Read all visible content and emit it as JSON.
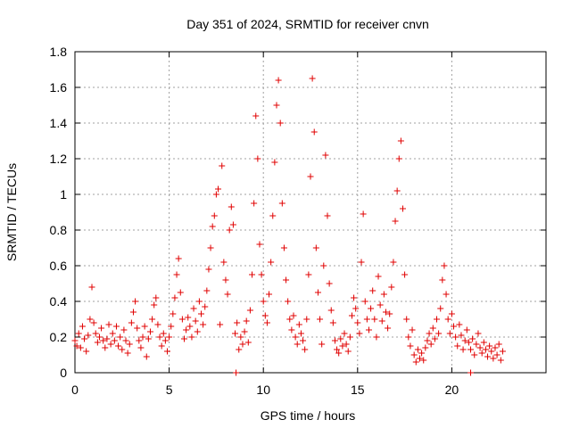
{
  "chart_data": {
    "type": "scatter",
    "title": "Day 351 of 2024, SRMTID for receiver cnvn",
    "xlabel": "GPS time / hours",
    "ylabel": "SRMTID / TECUs",
    "xlim": [
      0,
      25
    ],
    "ylim": [
      0,
      1.8
    ],
    "xticks": [
      0,
      5,
      10,
      15,
      20
    ],
    "xtick_labels": [
      "0",
      "5",
      "10",
      "15",
      "20"
    ],
    "yticks": [
      0,
      0.2,
      0.4,
      0.6,
      0.8,
      1.0,
      1.2,
      1.4,
      1.6,
      1.8
    ],
    "ytick_labels": [
      "0",
      "0.2",
      "0.4",
      "0.6",
      "0.8",
      "1",
      "1.2",
      "1.4",
      "1.6",
      "1.8"
    ],
    "grid": true,
    "marker_color": "#e00000",
    "series": [
      {
        "name": "SRMTID",
        "points": [
          [
            0.0,
            0.18
          ],
          [
            0.1,
            0.15
          ],
          [
            0.2,
            0.22
          ],
          [
            0.3,
            0.14
          ],
          [
            0.4,
            0.26
          ],
          [
            0.5,
            0.19
          ],
          [
            0.6,
            0.12
          ],
          [
            0.7,
            0.21
          ],
          [
            0.8,
            0.3
          ],
          [
            0.9,
            0.48
          ],
          [
            1.0,
            0.28
          ],
          [
            1.1,
            0.22
          ],
          [
            1.2,
            0.17
          ],
          [
            1.3,
            0.2
          ],
          [
            1.4,
            0.25
          ],
          [
            1.5,
            0.18
          ],
          [
            1.6,
            0.14
          ],
          [
            1.7,
            0.19
          ],
          [
            1.8,
            0.27
          ],
          [
            1.9,
            0.16
          ],
          [
            2.0,
            0.22
          ],
          [
            2.1,
            0.18
          ],
          [
            2.2,
            0.26
          ],
          [
            2.3,
            0.15
          ],
          [
            2.4,
            0.2
          ],
          [
            2.5,
            0.13
          ],
          [
            2.6,
            0.24
          ],
          [
            2.7,
            0.18
          ],
          [
            2.8,
            0.11
          ],
          [
            2.9,
            0.16
          ],
          [
            3.0,
            0.28
          ],
          [
            3.1,
            0.34
          ],
          [
            3.2,
            0.4
          ],
          [
            3.3,
            0.25
          ],
          [
            3.4,
            0.18
          ],
          [
            3.5,
            0.14
          ],
          [
            3.6,
            0.2
          ],
          [
            3.7,
            0.26
          ],
          [
            3.8,
            0.09
          ],
          [
            3.9,
            0.19
          ],
          [
            4.0,
            0.23
          ],
          [
            4.1,
            0.3
          ],
          [
            4.2,
            0.38
          ],
          [
            4.3,
            0.42
          ],
          [
            4.4,
            0.27
          ],
          [
            4.5,
            0.2
          ],
          [
            4.6,
            0.15
          ],
          [
            4.7,
            0.22
          ],
          [
            4.8,
            0.18
          ],
          [
            4.9,
            0.12
          ],
          [
            5.0,
            0.2
          ],
          [
            5.1,
            0.26
          ],
          [
            5.2,
            0.33
          ],
          [
            5.3,
            0.42
          ],
          [
            5.4,
            0.55
          ],
          [
            5.5,
            0.64
          ],
          [
            5.6,
            0.45
          ],
          [
            5.7,
            0.3
          ],
          [
            5.8,
            0.19
          ],
          [
            5.9,
            0.24
          ],
          [
            6.0,
            0.31
          ],
          [
            6.1,
            0.26
          ],
          [
            6.2,
            0.2
          ],
          [
            6.3,
            0.36
          ],
          [
            6.4,
            0.29
          ],
          [
            6.5,
            0.23
          ],
          [
            6.6,
            0.4
          ],
          [
            6.7,
            0.33
          ],
          [
            6.8,
            0.27
          ],
          [
            6.9,
            0.37
          ],
          [
            7.0,
            0.46
          ],
          [
            7.1,
            0.58
          ],
          [
            7.2,
            0.7
          ],
          [
            7.3,
            0.82
          ],
          [
            7.4,
            0.88
          ],
          [
            7.5,
            1.0
          ],
          [
            7.6,
            1.03
          ],
          [
            7.7,
            0.27
          ],
          [
            7.8,
            1.16
          ],
          [
            7.9,
            0.62
          ],
          [
            8.0,
            0.52
          ],
          [
            8.1,
            0.44
          ],
          [
            8.2,
            0.8
          ],
          [
            8.3,
            0.93
          ],
          [
            8.4,
            0.83
          ],
          [
            8.5,
            0.22
          ],
          [
            8.6,
            0.28
          ],
          [
            8.7,
            0.13
          ],
          [
            8.8,
            0.2
          ],
          [
            8.9,
            0.16
          ],
          [
            9.0,
            0.23
          ],
          [
            9.1,
            0.29
          ],
          [
            9.2,
            0.17
          ],
          [
            9.3,
            0.35
          ],
          [
            9.4,
            0.55
          ],
          [
            9.5,
            0.95
          ],
          [
            9.6,
            1.44
          ],
          [
            9.7,
            1.2
          ],
          [
            9.8,
            0.72
          ],
          [
            9.9,
            0.55
          ],
          [
            10.0,
            0.4
          ],
          [
            10.1,
            0.32
          ],
          [
            10.2,
            0.28
          ],
          [
            10.3,
            0.44
          ],
          [
            10.4,
            0.62
          ],
          [
            10.5,
            0.88
          ],
          [
            10.6,
            1.18
          ],
          [
            10.7,
            1.5
          ],
          [
            10.8,
            1.64
          ],
          [
            10.9,
            1.4
          ],
          [
            11.0,
            0.95
          ],
          [
            11.1,
            0.7
          ],
          [
            11.2,
            0.52
          ],
          [
            11.3,
            0.4
          ],
          [
            11.4,
            0.3
          ],
          [
            11.5,
            0.24
          ],
          [
            11.6,
            0.32
          ],
          [
            11.7,
            0.2
          ],
          [
            11.8,
            0.16
          ],
          [
            11.9,
            0.27
          ],
          [
            12.0,
            0.22
          ],
          [
            12.1,
            0.18
          ],
          [
            12.2,
            0.13
          ],
          [
            12.3,
            0.3
          ],
          [
            12.4,
            0.55
          ],
          [
            12.5,
            1.1
          ],
          [
            12.6,
            1.65
          ],
          [
            12.7,
            1.35
          ],
          [
            12.8,
            0.7
          ],
          [
            12.9,
            0.45
          ],
          [
            13.0,
            0.3
          ],
          [
            13.1,
            0.16
          ],
          [
            13.2,
            0.6
          ],
          [
            13.3,
            1.22
          ],
          [
            13.4,
            0.88
          ],
          [
            13.5,
            0.5
          ],
          [
            13.6,
            0.35
          ],
          [
            13.7,
            0.28
          ],
          [
            13.8,
            0.18
          ],
          [
            13.9,
            0.13
          ],
          [
            14.0,
            0.11
          ],
          [
            14.1,
            0.19
          ],
          [
            14.2,
            0.15
          ],
          [
            14.3,
            0.22
          ],
          [
            14.4,
            0.16
          ],
          [
            14.5,
            0.12
          ],
          [
            14.6,
            0.2
          ],
          [
            14.7,
            0.32
          ],
          [
            14.8,
            0.42
          ],
          [
            14.9,
            0.36
          ],
          [
            15.0,
            0.28
          ],
          [
            15.1,
            0.22
          ],
          [
            15.2,
            0.62
          ],
          [
            15.3,
            0.89
          ],
          [
            15.4,
            0.4
          ],
          [
            15.5,
            0.3
          ],
          [
            15.6,
            0.24
          ],
          [
            15.7,
            0.36
          ],
          [
            15.8,
            0.46
          ],
          [
            15.9,
            0.3
          ],
          [
            16.0,
            0.2
          ],
          [
            16.1,
            0.54
          ],
          [
            16.2,
            0.38
          ],
          [
            16.3,
            0.29
          ],
          [
            16.4,
            0.44
          ],
          [
            16.5,
            0.34
          ],
          [
            16.6,
            0.25
          ],
          [
            16.7,
            0.33
          ],
          [
            16.8,
            0.48
          ],
          [
            16.9,
            0.62
          ],
          [
            17.0,
            0.85
          ],
          [
            17.1,
            1.02
          ],
          [
            17.2,
            1.2
          ],
          [
            17.3,
            1.3
          ],
          [
            17.4,
            0.92
          ],
          [
            17.5,
            0.55
          ],
          [
            17.6,
            0.3
          ],
          [
            17.7,
            0.2
          ],
          [
            17.8,
            0.15
          ],
          [
            17.9,
            0.24
          ],
          [
            18.0,
            0.1
          ],
          [
            18.1,
            0.06
          ],
          [
            18.2,
            0.13
          ],
          [
            18.3,
            0.08
          ],
          [
            18.4,
            0.11
          ],
          [
            18.5,
            0.07
          ],
          [
            18.6,
            0.14
          ],
          [
            18.7,
            0.18
          ],
          [
            18.8,
            0.22
          ],
          [
            18.9,
            0.16
          ],
          [
            19.0,
            0.25
          ],
          [
            19.1,
            0.19
          ],
          [
            19.2,
            0.3
          ],
          [
            19.3,
            0.22
          ],
          [
            19.4,
            0.36
          ],
          [
            19.5,
            0.52
          ],
          [
            19.6,
            0.6
          ],
          [
            19.7,
            0.44
          ],
          [
            19.8,
            0.3
          ],
          [
            19.9,
            0.22
          ],
          [
            20.0,
            0.33
          ],
          [
            20.1,
            0.26
          ],
          [
            20.2,
            0.2
          ],
          [
            20.3,
            0.15
          ],
          [
            20.4,
            0.27
          ],
          [
            20.5,
            0.21
          ],
          [
            20.6,
            0.13
          ],
          [
            20.7,
            0.18
          ],
          [
            20.8,
            0.24
          ],
          [
            20.9,
            0.17
          ],
          [
            21.0,
            0.13
          ],
          [
            21.1,
            0.19
          ],
          [
            21.2,
            0.1
          ],
          [
            21.3,
            0.16
          ],
          [
            21.4,
            0.22
          ],
          [
            21.5,
            0.14
          ],
          [
            21.6,
            0.11
          ],
          [
            21.7,
            0.17
          ],
          [
            21.8,
            0.13
          ],
          [
            21.9,
            0.09
          ],
          [
            22.0,
            0.15
          ],
          [
            22.1,
            0.12
          ],
          [
            22.2,
            0.08
          ],
          [
            22.3,
            0.14
          ],
          [
            22.4,
            0.1
          ],
          [
            22.5,
            0.16
          ],
          [
            22.6,
            0.07
          ],
          [
            22.7,
            0.12
          ],
          [
            8.55,
            0.0
          ],
          [
            21.0,
            0.0
          ]
        ]
      }
    ]
  }
}
